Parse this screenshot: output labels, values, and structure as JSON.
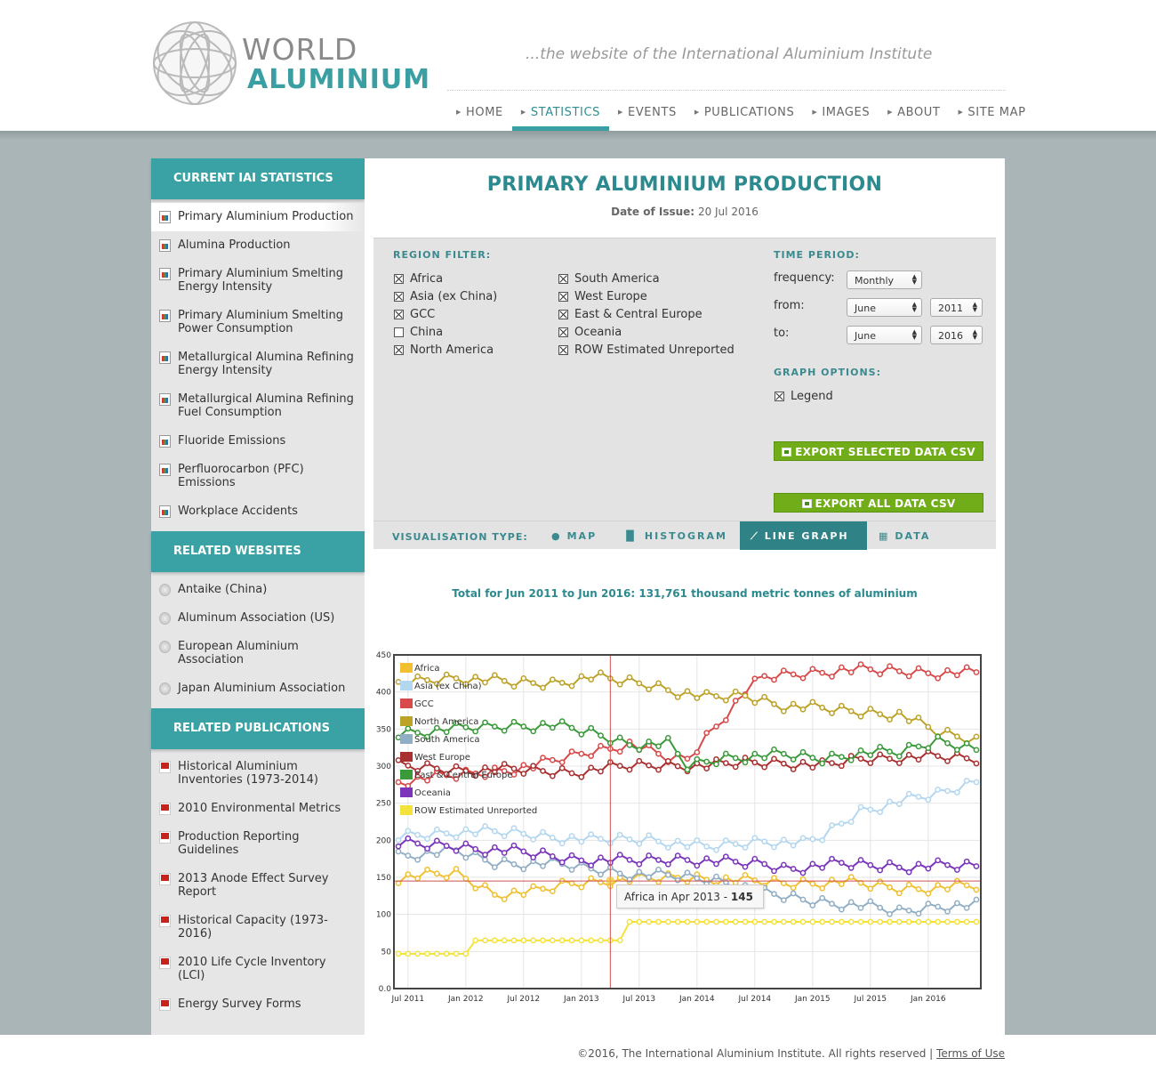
{
  "header": {
    "logo": {
      "line1": "WORLD",
      "line2": "ALUMINIUM"
    },
    "tagline": "...the website of the International Aluminium Institute",
    "nav": [
      {
        "label": "HOME",
        "active": false
      },
      {
        "label": "STATISTICS",
        "active": true
      },
      {
        "label": "EVENTS",
        "active": false
      },
      {
        "label": "PUBLICATIONS",
        "active": false
      },
      {
        "label": "IMAGES",
        "active": false
      },
      {
        "label": "ABOUT",
        "active": false
      },
      {
        "label": "SITE MAP",
        "active": false
      }
    ]
  },
  "sidebar": {
    "stats_heading": "CURRENT IAI STATISTICS",
    "stats_items": [
      "Primary Aluminium Production",
      "Alumina Production",
      "Primary Aluminium Smelting Energy Intensity",
      "Primary Aluminium Smelting Power Consumption",
      "Metallurgical Alumina Refining Energy Intensity",
      "Metallurgical Alumina Refining Fuel Consumption",
      "Fluoride Emissions",
      "Perfluorocarbon (PFC) Emissions",
      "Workplace Accidents"
    ],
    "websites_heading": "RELATED WEBSITES",
    "websites_items": [
      "Antaike (China)",
      "Aluminum Association (US)",
      "European Aluminium Association",
      "Japan Aluminium Association"
    ],
    "publications_heading": "RELATED PUBLICATIONS",
    "publications_items": [
      "Historical Aluminium Inventories (1973-2014)",
      "2010 Environmental Metrics",
      "Production Reporting Guidelines",
      "2013 Anode Effect Survey Report",
      "Historical Capacity (1973-2016)",
      "2010 Life Cycle Inventory (LCI)",
      "Energy Survey Forms"
    ]
  },
  "main": {
    "title": "PRIMARY ALUMINIUM PRODUCTION",
    "issue_label": "Date of Issue:",
    "issue_date": "20 Jul 2016",
    "region_filter_label": "REGION FILTER:",
    "regions_col1": [
      {
        "label": "Africa",
        "checked": true
      },
      {
        "label": "Asia (ex China)",
        "checked": true
      },
      {
        "label": "GCC",
        "checked": true
      },
      {
        "label": "China",
        "checked": false
      },
      {
        "label": "North America",
        "checked": true
      }
    ],
    "regions_col2": [
      {
        "label": "South America",
        "checked": true
      },
      {
        "label": "West Europe",
        "checked": true
      },
      {
        "label": "East & Central Europe",
        "checked": true
      },
      {
        "label": "Oceania",
        "checked": true
      },
      {
        "label": "ROW Estimated Unreported",
        "checked": true
      }
    ],
    "time_period_label": "TIME PERIOD:",
    "frequency_label": "frequency:",
    "frequency_value": "Monthly",
    "from_label": "from:",
    "from_month": "June",
    "from_year": "2011",
    "to_label": "to:",
    "to_month": "June",
    "to_year": "2016",
    "graph_options_label": "GRAPH OPTIONS:",
    "legend_option": {
      "label": "Legend",
      "checked": true
    },
    "export_selected": "EXPORT SELECTED DATA CSV",
    "export_all": "EXPORT ALL DATA CSV",
    "vis_label": "VISUALISATION TYPE:",
    "vis_options": [
      {
        "label": "MAP",
        "icon": "globe-icon",
        "active": false
      },
      {
        "label": "HISTOGRAM",
        "icon": "bar-chart-icon",
        "active": false
      },
      {
        "label": "LINE GRAPH",
        "icon": "line-chart-icon",
        "active": true
      },
      {
        "label": "DATA",
        "icon": "table-icon",
        "active": false
      }
    ],
    "total_text": "Total for Jun 2011 to Jun 2016: 131,761 thousand metric tonnes of aluminium",
    "tooltip": {
      "label": "Africa in Apr 2013 - ",
      "value": "145"
    }
  },
  "chart_data": {
    "type": "line",
    "x": [
      "Jul 2011",
      "Jan 2012",
      "Jul 2012",
      "Jan 2013",
      "Jul 2013",
      "Jan 2014",
      "Jul 2014",
      "Jan 2015",
      "Jul 2015",
      "Jan 2016"
    ],
    "xlabel": "",
    "ylabel": "",
    "yticks": [
      "0.0",
      "50",
      "100",
      "150",
      "200",
      "250",
      "300",
      "350",
      "400",
      "450"
    ],
    "ylim": [
      0,
      450
    ],
    "x_range": [
      "Jun 2011",
      "Jun 2016"
    ],
    "legend_position": "top-left",
    "highlight": {
      "series": "Africa",
      "x": "Apr 2013",
      "y": 145
    },
    "series": [
      {
        "name": "Africa",
        "color": "#f0c030",
        "anchors": [
          [
            0,
            150
          ],
          [
            6,
            155
          ],
          [
            10,
            128
          ],
          [
            14,
            130
          ],
          [
            18,
            142
          ],
          [
            22,
            146
          ],
          [
            30,
            150
          ],
          [
            40,
            142
          ],
          [
            46,
            144
          ],
          [
            52,
            135
          ],
          [
            60,
            138
          ]
        ]
      },
      {
        "name": "Asia (ex China)",
        "color": "#b3d7ef",
        "anchors": [
          [
            0,
            205
          ],
          [
            6,
            212
          ],
          [
            12,
            210
          ],
          [
            20,
            200
          ],
          [
            26,
            202
          ],
          [
            32,
            190
          ],
          [
            38,
            200
          ],
          [
            42,
            195
          ],
          [
            44,
            205
          ],
          [
            48,
            240
          ],
          [
            52,
            252
          ],
          [
            56,
            262
          ],
          [
            60,
            280
          ]
        ]
      },
      {
        "name": "GCC",
        "color": "#d84a4a",
        "anchors": [
          [
            0,
            280
          ],
          [
            8,
            290
          ],
          [
            14,
            300
          ],
          [
            20,
            320
          ],
          [
            24,
            330
          ],
          [
            28,
            310
          ],
          [
            30,
            310
          ],
          [
            34,
            370
          ],
          [
            36,
            400
          ],
          [
            38,
            420
          ],
          [
            42,
            425
          ],
          [
            46,
            430
          ],
          [
            52,
            428
          ],
          [
            60,
            425
          ]
        ]
      },
      {
        "name": "North America",
        "color": "#bda228",
        "anchors": [
          [
            0,
            412
          ],
          [
            6,
            420
          ],
          [
            12,
            412
          ],
          [
            16,
            412
          ],
          [
            20,
            420
          ],
          [
            26,
            410
          ],
          [
            32,
            392
          ],
          [
            36,
            395
          ],
          [
            40,
            382
          ],
          [
            46,
            375
          ],
          [
            52,
            370
          ],
          [
            56,
            345
          ],
          [
            60,
            335
          ]
        ]
      },
      {
        "name": "South America",
        "color": "#90aec4",
        "anchors": [
          [
            0,
            180
          ],
          [
            6,
            185
          ],
          [
            10,
            170
          ],
          [
            16,
            168
          ],
          [
            20,
            162
          ],
          [
            24,
            155
          ],
          [
            30,
            150
          ],
          [
            34,
            145
          ],
          [
            38,
            128
          ],
          [
            42,
            120
          ],
          [
            48,
            112
          ],
          [
            52,
            103
          ],
          [
            56,
            112
          ],
          [
            60,
            112
          ]
        ]
      },
      {
        "name": "West Europe",
        "color": "#a93030",
        "anchors": [
          [
            0,
            300
          ],
          [
            6,
            295
          ],
          [
            12,
            295
          ],
          [
            18,
            292
          ],
          [
            24,
            300
          ],
          [
            28,
            302
          ],
          [
            32,
            300
          ],
          [
            36,
            305
          ],
          [
            40,
            305
          ],
          [
            44,
            300
          ],
          [
            48,
            310
          ],
          [
            52,
            312
          ],
          [
            56,
            312
          ],
          [
            60,
            310
          ]
        ]
      },
      {
        "name": "East & Central Europe",
        "color": "#3a9a3a",
        "anchors": [
          [
            0,
            345
          ],
          [
            6,
            350
          ],
          [
            12,
            355
          ],
          [
            16,
            355
          ],
          [
            20,
            345
          ],
          [
            24,
            330
          ],
          [
            28,
            330
          ],
          [
            30,
            300
          ],
          [
            34,
            312
          ],
          [
            40,
            315
          ],
          [
            44,
            310
          ],
          [
            48,
            318
          ],
          [
            52,
            318
          ],
          [
            56,
            335
          ],
          [
            60,
            325
          ]
        ]
      },
      {
        "name": "Oceania",
        "color": "#7b35bb",
        "anchors": [
          [
            0,
            195
          ],
          [
            6,
            192
          ],
          [
            12,
            185
          ],
          [
            18,
            175
          ],
          [
            24,
            172
          ],
          [
            30,
            175
          ],
          [
            34,
            170
          ],
          [
            38,
            168
          ],
          [
            40,
            162
          ],
          [
            46,
            168
          ],
          [
            52,
            165
          ],
          [
            60,
            165
          ]
        ]
      },
      {
        "name": "ROW Estimated Unreported",
        "color": "#f4e23c",
        "anchors": [
          [
            0,
            47
          ],
          [
            7,
            47
          ],
          [
            8,
            65
          ],
          [
            23,
            65
          ],
          [
            24,
            90
          ],
          [
            60,
            90
          ]
        ]
      }
    ]
  },
  "footer": {
    "copyright": "©2016, The International Aluminium Institute. All rights reserved |",
    "terms": "Terms of Use"
  }
}
